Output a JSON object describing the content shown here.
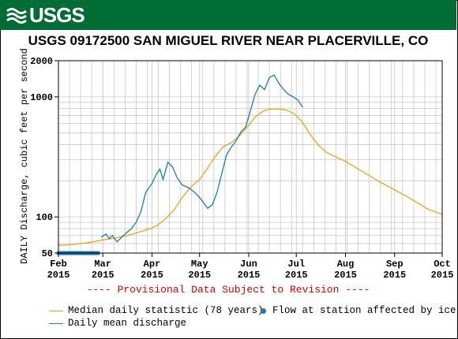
{
  "brand": {
    "logo_text": "USGS",
    "banner_color": "#006c35"
  },
  "chart_data": {
    "type": "line",
    "title": "USGS 09172500 SAN MIGUEL RIVER NEAR PLACERVILLE, CO",
    "ylabel": "DAILY Discharge, cubic feet per second",
    "xlabel": "",
    "yscale": "log",
    "ylim": [
      50,
      2000
    ],
    "xlim": [
      "2015-02-01",
      "2015-10-01"
    ],
    "y_tick_labels": [
      {
        "value": 2000,
        "label": "2000"
      },
      {
        "value": 1000,
        "label": "1000"
      },
      {
        "value": 100,
        "label": "100"
      },
      {
        "value": 50,
        "label": "50"
      }
    ],
    "x_tick_labels": [
      {
        "date": "2015-02-01",
        "month": "Feb",
        "year": "2015"
      },
      {
        "date": "2015-03-01",
        "month": "Mar",
        "year": "2015"
      },
      {
        "date": "2015-04-01",
        "month": "Apr",
        "year": "2015"
      },
      {
        "date": "2015-05-01",
        "month": "May",
        "year": "2015"
      },
      {
        "date": "2015-06-01",
        "month": "Jun",
        "year": "2015"
      },
      {
        "date": "2015-07-01",
        "month": "Jul",
        "year": "2015"
      },
      {
        "date": "2015-08-01",
        "month": "Aug",
        "year": "2015"
      },
      {
        "date": "2015-09-01",
        "month": "Sep",
        "year": "2015"
      },
      {
        "date": "2015-10-01",
        "month": "Oct",
        "year": "2015"
      }
    ],
    "grid": true,
    "annotation": "---- Provisional Data Subject to Revision ----",
    "annotation_color": "#cc0000",
    "series": [
      {
        "name": "Median daily statistic (78 years)",
        "color": "#e8a317",
        "points": [
          [
            "2015-02-01",
            58
          ],
          [
            "2015-02-10",
            59
          ],
          [
            "2015-02-20",
            61
          ],
          [
            "2015-02-28",
            64
          ],
          [
            "2015-03-10",
            67
          ],
          [
            "2015-03-20",
            72
          ],
          [
            "2015-03-31",
            80
          ],
          [
            "2015-04-05",
            86
          ],
          [
            "2015-04-10",
            98
          ],
          [
            "2015-04-15",
            115
          ],
          [
            "2015-04-20",
            145
          ],
          [
            "2015-04-25",
            175
          ],
          [
            "2015-05-01",
            205
          ],
          [
            "2015-05-06",
            255
          ],
          [
            "2015-05-11",
            320
          ],
          [
            "2015-05-16",
            385
          ],
          [
            "2015-05-21",
            415
          ],
          [
            "2015-05-26",
            470
          ],
          [
            "2015-06-01",
            580
          ],
          [
            "2015-06-05",
            680
          ],
          [
            "2015-06-10",
            760
          ],
          [
            "2015-06-15",
            795
          ],
          [
            "2015-06-20",
            790
          ],
          [
            "2015-06-25",
            775
          ],
          [
            "2015-06-30",
            720
          ],
          [
            "2015-07-05",
            610
          ],
          [
            "2015-07-10",
            480
          ],
          [
            "2015-07-15",
            395
          ],
          [
            "2015-07-20",
            345
          ],
          [
            "2015-07-25",
            320
          ],
          [
            "2015-08-01",
            290
          ],
          [
            "2015-08-08",
            255
          ],
          [
            "2015-08-15",
            225
          ],
          [
            "2015-08-22",
            198
          ],
          [
            "2015-09-01",
            168
          ],
          [
            "2015-09-08",
            150
          ],
          [
            "2015-09-15",
            132
          ],
          [
            "2015-09-22",
            116
          ],
          [
            "2015-10-01",
            105
          ]
        ]
      },
      {
        "name": "Daily mean discharge",
        "color": "#1f78b4",
        "points": [
          [
            "2015-02-28",
            68
          ],
          [
            "2015-03-03",
            72
          ],
          [
            "2015-03-05",
            66
          ],
          [
            "2015-03-07",
            70
          ],
          [
            "2015-03-10",
            62
          ],
          [
            "2015-03-13",
            68
          ],
          [
            "2015-03-16",
            74
          ],
          [
            "2015-03-19",
            80
          ],
          [
            "2015-03-22",
            90
          ],
          [
            "2015-03-25",
            110
          ],
          [
            "2015-03-28",
            160
          ],
          [
            "2015-04-01",
            190
          ],
          [
            "2015-04-04",
            230
          ],
          [
            "2015-04-06",
            250
          ],
          [
            "2015-04-08",
            205
          ],
          [
            "2015-04-11",
            285
          ],
          [
            "2015-04-14",
            260
          ],
          [
            "2015-04-17",
            210
          ],
          [
            "2015-04-20",
            185
          ],
          [
            "2015-04-24",
            175
          ],
          [
            "2015-04-28",
            160
          ],
          [
            "2015-05-02",
            140
          ],
          [
            "2015-05-06",
            118
          ],
          [
            "2015-05-09",
            126
          ],
          [
            "2015-05-12",
            160
          ],
          [
            "2015-05-15",
            230
          ],
          [
            "2015-05-18",
            330
          ],
          [
            "2015-05-21",
            380
          ],
          [
            "2015-05-24",
            430
          ],
          [
            "2015-05-27",
            510
          ],
          [
            "2015-05-30",
            560
          ],
          [
            "2015-06-02",
            760
          ],
          [
            "2015-06-05",
            1050
          ],
          [
            "2015-06-08",
            1250
          ],
          [
            "2015-06-11",
            1150
          ],
          [
            "2015-06-14",
            1450
          ],
          [
            "2015-06-17",
            1520
          ],
          [
            "2015-06-20",
            1300
          ],
          [
            "2015-06-23",
            1150
          ],
          [
            "2015-06-26",
            1050
          ],
          [
            "2015-06-29",
            1000
          ],
          [
            "2015-07-02",
            940
          ],
          [
            "2015-07-05",
            820
          ]
        ]
      },
      {
        "name": "Flow at station affected by ice",
        "color": "#1f78b4",
        "marker": "dot",
        "date_range": [
          "2015-02-01",
          "2015-02-26"
        ],
        "value": 50
      }
    ]
  },
  "legend": {
    "median": "Median daily statistic (78 years)",
    "ice": "Flow at station affected by ice",
    "daily": "Daily mean discharge"
  },
  "colors": {
    "median": "#e8a317",
    "daily": "#1f78b4",
    "ice": "#1f78b4",
    "grid": "#c8c8c8",
    "annotation": "#cc0000"
  }
}
